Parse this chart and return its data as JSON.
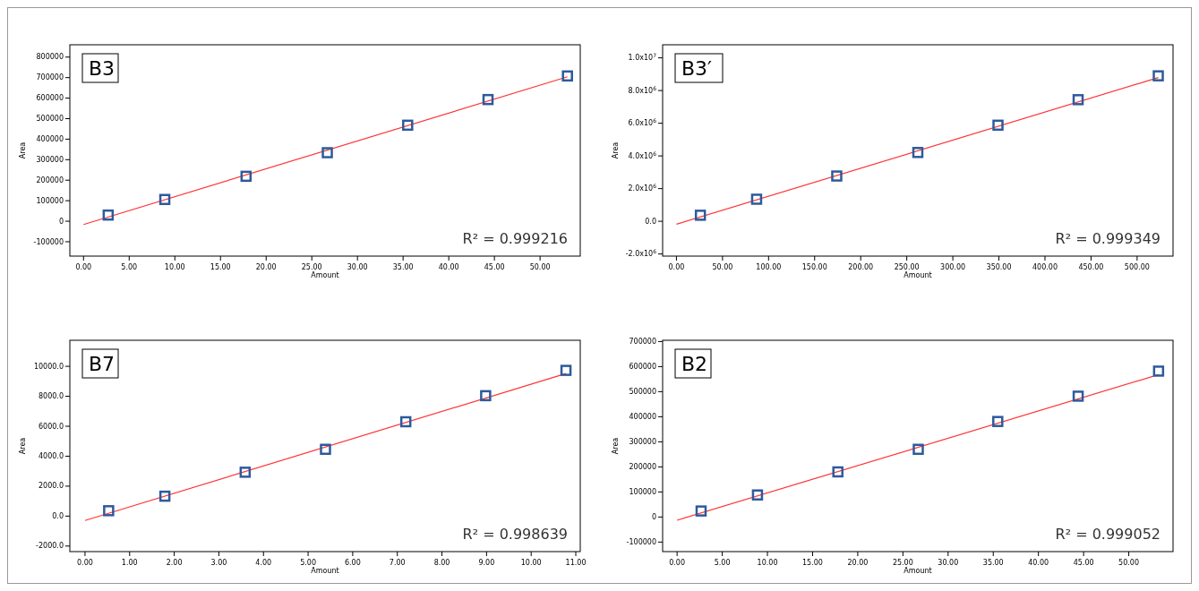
{
  "chart_data": [
    {
      "type": "scatter",
      "title": "B3",
      "xlabel": "Amount",
      "ylabel": "Area",
      "annotations": [
        "R² = 0.999216"
      ],
      "marker": "square",
      "grid": false,
      "xlim": [
        -1.5,
        54.4
      ],
      "ylim": [
        -170000,
        860000
      ],
      "xticks": [
        {
          "value": 0,
          "label": "0.00"
        },
        {
          "value": 5,
          "label": "5.00"
        },
        {
          "value": 10,
          "label": "10.00"
        },
        {
          "value": 15,
          "label": "15.00"
        },
        {
          "value": 20,
          "label": "20.00"
        },
        {
          "value": 25,
          "label": "25.00"
        },
        {
          "value": 30,
          "label": "30.00"
        },
        {
          "value": 35,
          "label": "35.00"
        },
        {
          "value": 40,
          "label": "40.00"
        },
        {
          "value": 45,
          "label": "45.00"
        },
        {
          "value": 50,
          "label": "50.00"
        }
      ],
      "yticks": [
        -100000,
        0,
        100000,
        200000,
        300000,
        400000,
        500000,
        600000,
        700000,
        800000
      ],
      "series": [
        {
          "type": "scatter",
          "color": "#2e5a9c",
          "x": [
            2.7,
            8.9,
            17.8,
            26.7,
            35.5,
            44.3,
            53.0
          ],
          "values": [
            30000,
            106000,
            219000,
            334000,
            468000,
            593000,
            708000
          ]
        },
        {
          "type": "line",
          "color": "#ff3333",
          "marker": "none",
          "x": [
            0,
            53.0
          ],
          "values": [
            -16000,
            704000
          ]
        }
      ]
    },
    {
      "type": "scatter",
      "title": "B3′",
      "xlabel": "Amount",
      "ylabel": "Area",
      "annotations": [
        "R² = 0.999349"
      ],
      "marker": "square",
      "grid": false,
      "xlim": [
        -15,
        539
      ],
      "ylim": [
        -2130000,
        10800000
      ],
      "xticks": [
        {
          "value": 0,
          "label": "0.00"
        },
        {
          "value": 50,
          "label": "50.00"
        },
        {
          "value": 100,
          "label": "100.00"
        },
        {
          "value": 150,
          "label": "150.00"
        },
        {
          "value": 200,
          "label": "200.00"
        },
        {
          "value": 250,
          "label": "250.00"
        },
        {
          "value": 300,
          "label": "300.00"
        },
        {
          "value": 350,
          "label": "350.00"
        },
        {
          "value": 400,
          "label": "400.00"
        },
        {
          "value": 450,
          "label": "450.00"
        },
        {
          "value": 500,
          "label": "500.00"
        }
      ],
      "yticks": [
        {
          "value": -2000000,
          "label": "-2.0x10$^{6}$"
        },
        {
          "value": 0,
          "label": "0.0"
        },
        {
          "value": 2000000,
          "label": "2.0x10$^{6}$"
        },
        {
          "value": 4000000,
          "label": "4.0x10$^{6}$"
        },
        {
          "value": 6000000,
          "label": "6.0x10$^{6}$"
        },
        {
          "value": 8000000,
          "label": "8.0x10$^{6}$"
        },
        {
          "value": 10000000,
          "label": "1.0x10$^{7}$"
        }
      ],
      "series": [
        {
          "type": "scatter",
          "color": "#2e5a9c",
          "x": [
            26,
            87,
            174,
            262,
            349,
            436,
            523
          ],
          "values": [
            370000,
            1350000,
            2770000,
            4210000,
            5880000,
            7440000,
            8900000
          ]
        },
        {
          "type": "line",
          "color": "#ff3333",
          "marker": "none",
          "x": [
            0,
            523
          ],
          "values": [
            -180000,
            8790000
          ]
        }
      ]
    },
    {
      "type": "scatter",
      "title": "B7",
      "xlabel": "Amount",
      "ylabel": "Area",
      "annotations": [
        "R² = 0.998639"
      ],
      "marker": "square",
      "grid": false,
      "xlim": [
        -0.34,
        11.1
      ],
      "ylim": [
        -2370,
        11740
      ],
      "xticks": [
        {
          "value": 0,
          "label": "0.00"
        },
        {
          "value": 1,
          "label": "1.00"
        },
        {
          "value": 2,
          "label": "2.00"
        },
        {
          "value": 3,
          "label": "3.00"
        },
        {
          "value": 4,
          "label": "4.00"
        },
        {
          "value": 5,
          "label": "5.00"
        },
        {
          "value": 6,
          "label": "6.00"
        },
        {
          "value": 7,
          "label": "7.00"
        },
        {
          "value": 8,
          "label": "8.00"
        },
        {
          "value": 9,
          "label": "9.00"
        },
        {
          "value": 10,
          "label": "10.00"
        },
        {
          "value": 11,
          "label": "11.00"
        }
      ],
      "yticks": [
        {
          "value": -2000,
          "label": "-2000.0"
        },
        {
          "value": 0,
          "label": "0.0"
        },
        {
          "value": 2000,
          "label": "2000.0"
        },
        {
          "value": 4000,
          "label": "4000.0"
        },
        {
          "value": 6000,
          "label": "6000.0"
        },
        {
          "value": 8000,
          "label": "8000.0"
        },
        {
          "value": 10000,
          "label": "10000.0"
        }
      ],
      "series": [
        {
          "type": "scatter",
          "color": "#2e5a9c",
          "x": [
            0.53,
            1.79,
            3.59,
            5.39,
            7.19,
            8.98,
            10.78
          ],
          "values": [
            360,
            1330,
            2930,
            4460,
            6300,
            8040,
            9730
          ]
        },
        {
          "type": "line",
          "color": "#ff3333",
          "marker": "none",
          "x": [
            0,
            10.78
          ],
          "values": [
            -290,
            9520
          ]
        }
      ]
    },
    {
      "type": "scatter",
      "title": "B2",
      "xlabel": "Amount",
      "ylabel": "Area",
      "annotations": [
        "R² = 0.999052"
      ],
      "marker": "square",
      "grid": false,
      "xlim": [
        -1.6,
        54.9
      ],
      "ylim": [
        -138000,
        705000
      ],
      "xticks": [
        {
          "value": 0,
          "label": "0.00"
        },
        {
          "value": 5,
          "label": "5.00"
        },
        {
          "value": 10,
          "label": "10.00"
        },
        {
          "value": 15,
          "label": "15.00"
        },
        {
          "value": 20,
          "label": "20.00"
        },
        {
          "value": 25,
          "label": "25.00"
        },
        {
          "value": 30,
          "label": "30.00"
        },
        {
          "value": 35,
          "label": "35.00"
        },
        {
          "value": 40,
          "label": "40.00"
        },
        {
          "value": 45,
          "label": "45.00"
        },
        {
          "value": 50,
          "label": "50.00"
        }
      ],
      "yticks": [
        -100000,
        0,
        100000,
        200000,
        300000,
        400000,
        500000,
        600000,
        700000
      ],
      "series": [
        {
          "type": "scatter",
          "color": "#2e5a9c",
          "x": [
            2.66,
            8.9,
            17.8,
            26.7,
            35.5,
            44.4,
            53.3
          ],
          "values": [
            24000,
            88000,
            180000,
            270000,
            381000,
            482000,
            582000
          ]
        },
        {
          "type": "line",
          "color": "#ff3333",
          "marker": "none",
          "x": [
            0,
            53.3
          ],
          "values": [
            -13000,
            568000
          ]
        }
      ]
    }
  ]
}
